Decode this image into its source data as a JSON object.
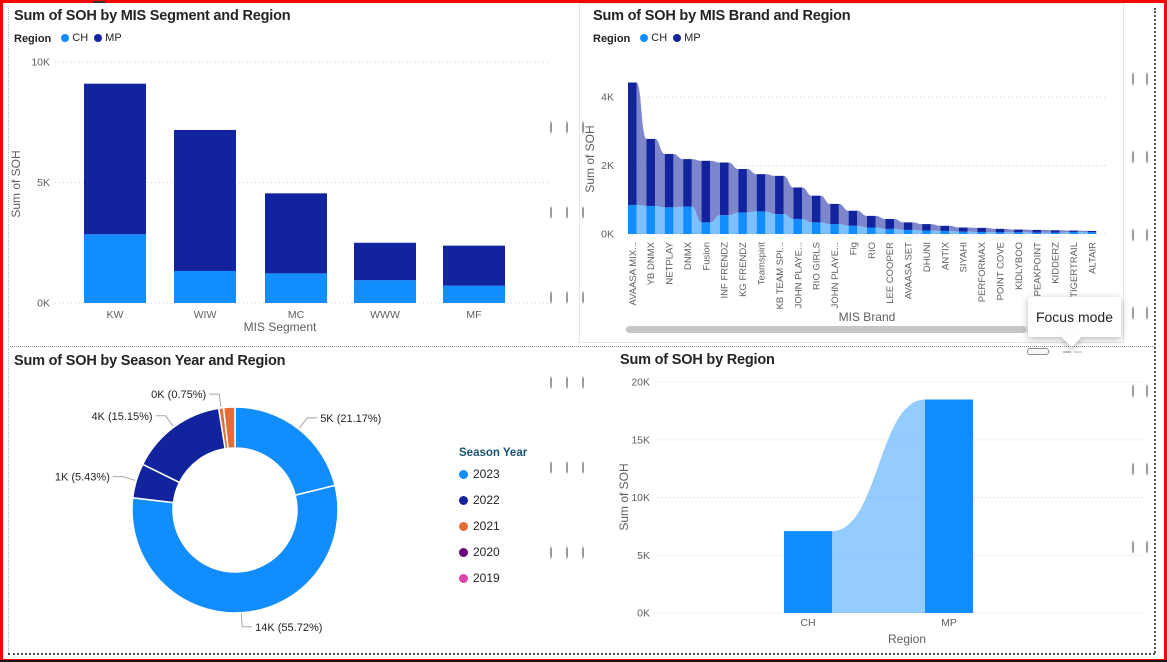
{
  "page": {
    "background": "#ffffff",
    "frame_color": "#fe0000",
    "accent_colors": {
      "ch_blue": "#118DFF",
      "mp_navy": "#12239E"
    }
  },
  "tooltip": {
    "text": "Focus mode"
  },
  "header_icons": [
    {
      "name": "focus-mode-icon"
    },
    {
      "name": "more-options-icon"
    }
  ],
  "chart_data": [
    {
      "id": "segment",
      "type": "bar",
      "title": "Sum of SOH by MIS Segment and Region",
      "legend_title": "Region",
      "legend_position": "top",
      "grid": "dotted",
      "categories": [
        "KW",
        "WIW",
        "MC",
        "WWW",
        "MF"
      ],
      "series": [
        {
          "name": "CH",
          "color": "#118DFF",
          "values": [
            2.85,
            1.33,
            1.23,
            0.95,
            0.72
          ]
        },
        {
          "name": "MP",
          "color": "#12239E",
          "values": [
            6.25,
            5.85,
            3.32,
            1.55,
            1.66
          ]
        }
      ],
      "xlabel": "MIS Segment",
      "ylabel": "Sum of SOH",
      "ylim": [
        0,
        10
      ],
      "yticks": [
        {
          "v": 0,
          "label": "0K"
        },
        {
          "v": 5,
          "label": "5K"
        },
        {
          "v": 10,
          "label": "10K"
        }
      ],
      "units": "K"
    },
    {
      "id": "brand",
      "type": "bar",
      "title": "Sum of SOH by MIS Brand and Region",
      "legend_title": "Region",
      "legend_position": "top",
      "grid": "dotted",
      "categories": [
        "AVAASA MIX...",
        "YB DNMX",
        "NETPLAY",
        "DNMX",
        "Fusion",
        "INF FRENDZ",
        "KG FRENDZ",
        "Teamspirit",
        "KB TEAM SPI...",
        "JOHN PLAYE...",
        "RIO GIRLS",
        "JOHN PLAYE...",
        "Fig",
        "RIO",
        "LEE COOPER",
        "AVAASA SET",
        "DHUNI",
        "ANTIX",
        "SIYAHI",
        "PERFORMAX",
        "POINT COVE",
        "KIDLYBOO",
        "PEAKPOINT",
        "KIDDERZ",
        "TIGERTRAIL",
        "ALTAIR"
      ],
      "series": [
        {
          "name": "CH",
          "color": "#118DFF",
          "values": [
            0.85,
            0.82,
            0.78,
            0.8,
            0.34,
            0.55,
            0.63,
            0.66,
            0.58,
            0.44,
            0.34,
            0.29,
            0.24,
            0.19,
            0.15,
            0.12,
            0.1,
            0.09,
            0.07,
            0.06,
            0.05,
            0.05,
            0.04,
            0.04,
            0.06,
            0.05
          ]
        },
        {
          "name": "MP",
          "color": "#12239E",
          "values": [
            3.58,
            1.96,
            1.56,
            1.39,
            1.8,
            1.54,
            1.27,
            1.09,
            1.12,
            0.92,
            0.78,
            0.59,
            0.44,
            0.34,
            0.29,
            0.22,
            0.19,
            0.15,
            0.12,
            0.12,
            0.1,
            0.08,
            0.08,
            0.07,
            0.04,
            0.04
          ]
        }
      ],
      "xlabel": "MIS Brand",
      "ylabel": "Sum of SOH",
      "ylim": [
        0,
        4.6
      ],
      "yticks": [
        {
          "v": 0,
          "label": "0K"
        },
        {
          "v": 2,
          "label": "2K"
        },
        {
          "v": 4,
          "label": "4K"
        }
      ],
      "units": "K",
      "has_scrollbar": true
    },
    {
      "id": "season",
      "type": "pie",
      "title": "Sum of SOH by Season Year and Region",
      "legend_title": "Season Year",
      "legend_position": "right",
      "legend": [
        {
          "label": "2023",
          "color": "#118DFF"
        },
        {
          "label": "2022",
          "color": "#12239E"
        },
        {
          "label": "2021",
          "color": "#E66C37"
        },
        {
          "label": "2020",
          "color": "#6B007B"
        },
        {
          "label": "2019",
          "color": "#E044A7"
        }
      ],
      "slices": [
        {
          "label": "5K (21.17%)",
          "pct": 21.17,
          "color": "#118DFF"
        },
        {
          "label": "14K (55.72%)",
          "pct": 55.72,
          "color": "#118DFF"
        },
        {
          "label": "1K (5.43%)",
          "pct": 5.43,
          "color": "#12239E"
        },
        {
          "label": "4K (15.15%)",
          "pct": 15.15,
          "color": "#12239E"
        },
        {
          "label": "0K (0.75%)",
          "pct": 0.75,
          "color": "#E66C37"
        },
        {
          "label": "",
          "pct": 1.78,
          "color": "#E66C37"
        }
      ]
    },
    {
      "id": "region",
      "type": "area",
      "title": "Sum of SOH by Region",
      "grid": "dotted",
      "categories": [
        "CH",
        "MP"
      ],
      "values": [
        7.1,
        18.5
      ],
      "color": "#118DFF",
      "xlabel": "Region",
      "ylabel": "Sum of SOH",
      "ylim": [
        0,
        20
      ],
      "yticks": [
        {
          "v": 0,
          "label": "0K"
        },
        {
          "v": 5,
          "label": "5K"
        },
        {
          "v": 10,
          "label": "10K"
        },
        {
          "v": 15,
          "label": "15K"
        },
        {
          "v": 20,
          "label": "20K"
        }
      ],
      "units": "K"
    }
  ]
}
